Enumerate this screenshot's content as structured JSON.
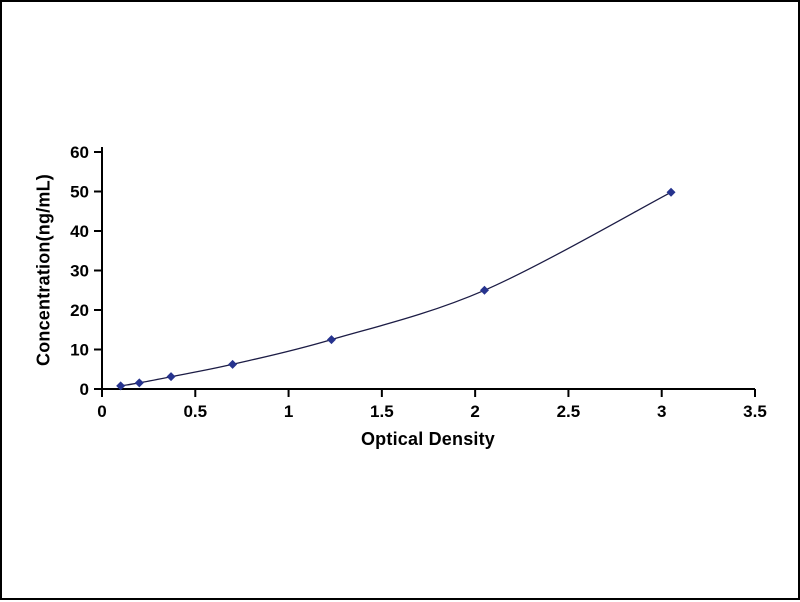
{
  "chart_data": {
    "type": "line",
    "title": "",
    "xlabel": "Optical Density",
    "ylabel": "Concentration(ng/mL)",
    "x": [
      0.1,
      0.2,
      0.37,
      0.7,
      1.23,
      2.05,
      3.05
    ],
    "y": [
      0.78,
      1.56,
      3.12,
      6.25,
      12.5,
      25,
      49.8
    ],
    "xlim": [
      0,
      3.5
    ],
    "ylim": [
      0,
      60
    ],
    "x_ticks": [
      0,
      0.5,
      1,
      1.5,
      2,
      2.5,
      3,
      3.5
    ],
    "x_tick_labels": [
      "0",
      "0.5",
      "1",
      "1.5",
      "2",
      "2.5",
      "3",
      "3.5"
    ],
    "y_ticks": [
      0,
      10,
      20,
      30,
      40,
      50,
      60
    ],
    "y_tick_labels": [
      "0",
      "10",
      "20",
      "30",
      "40",
      "50",
      "60"
    ],
    "grid": false,
    "legend": null,
    "marker": "diamond",
    "colors": {
      "line": "#1c1c45",
      "marker": "#26338e",
      "axis": "#000000",
      "frame_border": "#000000",
      "background": "#ffffff"
    }
  }
}
